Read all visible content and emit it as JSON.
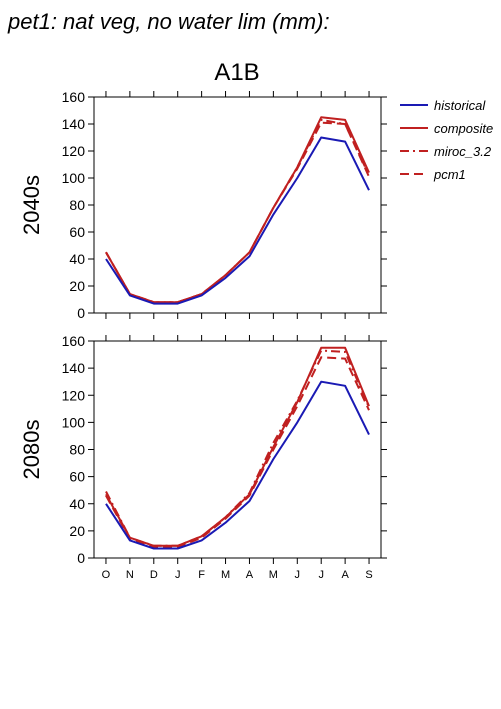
{
  "figure": {
    "title": "pet1: nat veg, no water lim (mm):",
    "scenario": "A1B"
  },
  "chart_data": [
    {
      "type": "line",
      "row_label": "2040s",
      "categories": [
        "O",
        "N",
        "D",
        "J",
        "F",
        "M",
        "A",
        "M",
        "J",
        "J",
        "A",
        "S"
      ],
      "ylim": [
        0,
        160
      ],
      "yticks": [
        0,
        20,
        40,
        60,
        80,
        100,
        120,
        140,
        160
      ],
      "series": [
        {
          "name": "historical",
          "color": "#1a1ab4",
          "dash": "solid",
          "values": [
            40,
            13,
            7,
            7,
            13,
            26,
            42,
            73,
            100,
            130,
            127,
            91
          ]
        },
        {
          "name": "composite",
          "color": "#c02020",
          "dash": "solid",
          "values": [
            45,
            14,
            8,
            8,
            14,
            28,
            45,
            78,
            108,
            145,
            143,
            104
          ]
        },
        {
          "name": "miroc_3.2",
          "color": "#c02020",
          "dash": "dashdot",
          "values": [
            45,
            14,
            8,
            8,
            14,
            28,
            45,
            78,
            108,
            143,
            140,
            102
          ]
        },
        {
          "name": "pcm1",
          "color": "#c02020",
          "dash": "dash",
          "values": [
            45,
            14,
            8,
            8,
            14,
            28,
            45,
            78,
            107,
            141,
            140,
            101
          ]
        }
      ]
    },
    {
      "type": "line",
      "row_label": "2080s",
      "categories": [
        "O",
        "N",
        "D",
        "J",
        "F",
        "M",
        "A",
        "M",
        "J",
        "J",
        "A",
        "S"
      ],
      "ylim": [
        0,
        160
      ],
      "yticks": [
        0,
        20,
        40,
        60,
        80,
        100,
        120,
        140,
        160
      ],
      "series": [
        {
          "name": "historical",
          "color": "#1a1ab4",
          "dash": "solid",
          "values": [
            40,
            13,
            7,
            7,
            13,
            26,
            42,
            73,
            100,
            130,
            127,
            91
          ]
        },
        {
          "name": "composite",
          "color": "#c02020",
          "dash": "solid",
          "values": [
            47,
            15,
            9,
            9,
            16,
            30,
            47,
            82,
            115,
            155,
            155,
            112
          ]
        },
        {
          "name": "miroc_3.2",
          "color": "#c02020",
          "dash": "dashdot",
          "values": [
            49,
            15,
            9,
            9,
            16,
            30,
            48,
            85,
            116,
            153,
            152,
            111
          ]
        },
        {
          "name": "pcm1",
          "color": "#c02020",
          "dash": "dash",
          "values": [
            46,
            14,
            8,
            8,
            15,
            29,
            46,
            80,
            112,
            148,
            147,
            109
          ]
        }
      ]
    }
  ]
}
